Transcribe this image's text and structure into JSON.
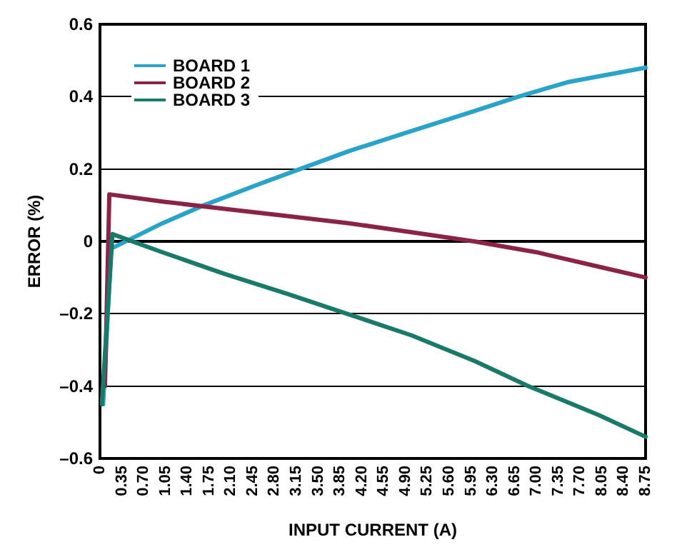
{
  "chart_data": {
    "type": "line",
    "xlabel": "INPUT CURRENT (A)",
    "ylabel": "ERROR (%)",
    "xlim": [
      0,
      8.75
    ],
    "xticks": [
      0,
      0.35,
      {
        "value": 0.7,
        "label": "0.70"
      },
      1.05,
      {
        "value": 1.4,
        "label": "1.40"
      },
      1.75,
      {
        "value": 2.1,
        "label": "2.10"
      },
      2.45,
      {
        "value": 2.8,
        "label": "2.80"
      },
      3.15,
      {
        "value": 3.5,
        "label": "3.50"
      },
      3.85,
      {
        "value": 4.2,
        "label": "4.20"
      },
      4.55,
      {
        "value": 4.9,
        "label": "4.90"
      },
      5.25,
      {
        "value": 5.6,
        "label": "5.60"
      },
      5.95,
      {
        "value": 6.3,
        "label": "6.30"
      },
      6.65,
      {
        "value": 7,
        "label": "7.00"
      },
      7.35,
      {
        "value": 7.7,
        "label": "7.70"
      },
      8.05,
      {
        "value": 8.4,
        "label": "8.40"
      },
      8.75
    ],
    "ylim": [
      -0.6,
      0.6
    ],
    "yticks": [
      {
        "value": -0.6,
        "label": "–0.6"
      },
      {
        "value": -0.4,
        "label": "–0.4"
      },
      {
        "value": -0.2,
        "label": "–0.2"
      },
      0,
      0.2,
      0.4,
      0.6
    ],
    "grid": "y",
    "legend": "top left",
    "marker": "none",
    "line_style": "solid",
    "series": [
      {
        "name": "BOARD 1",
        "color": "#29a3c8",
        "x": [
          0.05,
          0.18,
          1,
          1.67,
          2.5,
          3.21,
          4,
          5,
          6,
          6.71,
          7.5,
          8.75
        ],
        "values": [
          -0.45,
          -0.02,
          0.05,
          0.1,
          0.155,
          0.2,
          0.25,
          0.305,
          0.36,
          0.4,
          0.44,
          0.48
        ]
      },
      {
        "name": "BOARD 2",
        "color": "#8b2346",
        "x": [
          0.08,
          0.15,
          1,
          2,
          3,
          4,
          5,
          6,
          7,
          8,
          8.75
        ],
        "values": [
          -0.4,
          0.13,
          0.11,
          0.09,
          0.07,
          0.05,
          0.025,
          0,
          -0.03,
          -0.07,
          -0.1
        ]
      },
      {
        "name": "BOARD 3",
        "color": "#1a7a6a",
        "x": [
          0.03,
          0.2,
          1,
          2,
          3,
          3.96,
          5,
          6,
          6.87,
          8,
          8.75
        ],
        "values": [
          -0.45,
          0.02,
          -0.03,
          -0.09,
          -0.145,
          -0.2,
          -0.26,
          -0.33,
          -0.4,
          -0.48,
          -0.54
        ]
      }
    ]
  }
}
